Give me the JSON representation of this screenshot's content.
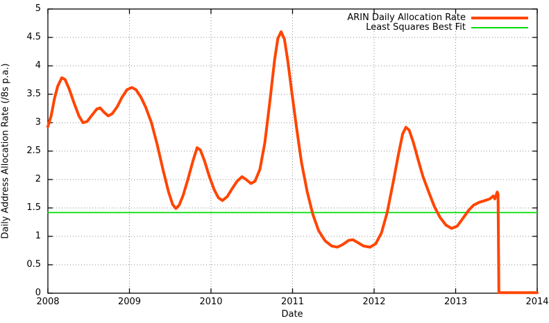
{
  "chart_data": {
    "type": "line",
    "title": "",
    "xlabel": "Date",
    "ylabel": "Daily Address Allocation Rate (/8s p.a.)",
    "xlim": [
      2008,
      2014
    ],
    "ylim": [
      0,
      5
    ],
    "x_ticks": [
      2008,
      2009,
      2010,
      2011,
      2012,
      2013,
      2014
    ],
    "y_ticks": [
      0,
      0.5,
      1,
      1.5,
      2,
      2.5,
      3,
      3.5,
      4,
      4.5,
      5
    ],
    "y_tick_labels": [
      "0",
      "0.5",
      "1",
      "1.5",
      "2",
      "2.5",
      "3",
      "3.5",
      "4",
      "4.5",
      "5"
    ],
    "grid": true,
    "legend_position": "top-right",
    "series": [
      {
        "name": "ARIN Daily Allocation Rate",
        "color": "#ff4500",
        "width": 4,
        "points": [
          [
            2008.0,
            2.93
          ],
          [
            2008.04,
            3.12
          ],
          [
            2008.08,
            3.42
          ],
          [
            2008.12,
            3.64
          ],
          [
            2008.17,
            3.79
          ],
          [
            2008.21,
            3.76
          ],
          [
            2008.26,
            3.6
          ],
          [
            2008.32,
            3.35
          ],
          [
            2008.38,
            3.12
          ],
          [
            2008.43,
            3.0
          ],
          [
            2008.48,
            3.02
          ],
          [
            2008.54,
            3.13
          ],
          [
            2008.6,
            3.24
          ],
          [
            2008.64,
            3.26
          ],
          [
            2008.69,
            3.18
          ],
          [
            2008.74,
            3.12
          ],
          [
            2008.79,
            3.16
          ],
          [
            2008.85,
            3.28
          ],
          [
            2008.91,
            3.45
          ],
          [
            2008.97,
            3.58
          ],
          [
            2009.03,
            3.62
          ],
          [
            2009.08,
            3.58
          ],
          [
            2009.14,
            3.45
          ],
          [
            2009.2,
            3.27
          ],
          [
            2009.27,
            3.0
          ],
          [
            2009.34,
            2.62
          ],
          [
            2009.41,
            2.18
          ],
          [
            2009.48,
            1.78
          ],
          [
            2009.53,
            1.56
          ],
          [
            2009.57,
            1.49
          ],
          [
            2009.61,
            1.55
          ],
          [
            2009.66,
            1.73
          ],
          [
            2009.72,
            2.02
          ],
          [
            2009.78,
            2.33
          ],
          [
            2009.83,
            2.56
          ],
          [
            2009.87,
            2.52
          ],
          [
            2009.92,
            2.33
          ],
          [
            2009.98,
            2.05
          ],
          [
            2010.04,
            1.82
          ],
          [
            2010.09,
            1.68
          ],
          [
            2010.14,
            1.63
          ],
          [
            2010.2,
            1.7
          ],
          [
            2010.26,
            1.84
          ],
          [
            2010.32,
            1.97
          ],
          [
            2010.38,
            2.05
          ],
          [
            2010.43,
            2.0
          ],
          [
            2010.49,
            1.93
          ],
          [
            2010.54,
            1.97
          ],
          [
            2010.6,
            2.18
          ],
          [
            2010.66,
            2.65
          ],
          [
            2010.72,
            3.35
          ],
          [
            2010.78,
            4.1
          ],
          [
            2010.82,
            4.48
          ],
          [
            2010.86,
            4.6
          ],
          [
            2010.9,
            4.47
          ],
          [
            2010.94,
            4.1
          ],
          [
            2010.99,
            3.55
          ],
          [
            2011.05,
            2.9
          ],
          [
            2011.11,
            2.3
          ],
          [
            2011.18,
            1.78
          ],
          [
            2011.25,
            1.38
          ],
          [
            2011.32,
            1.1
          ],
          [
            2011.4,
            0.92
          ],
          [
            2011.48,
            0.83
          ],
          [
            2011.55,
            0.81
          ],
          [
            2011.62,
            0.86
          ],
          [
            2011.69,
            0.93
          ],
          [
            2011.74,
            0.94
          ],
          [
            2011.8,
            0.89
          ],
          [
            2011.87,
            0.83
          ],
          [
            2011.95,
            0.81
          ],
          [
            2012.02,
            0.87
          ],
          [
            2012.09,
            1.06
          ],
          [
            2012.16,
            1.42
          ],
          [
            2012.23,
            1.92
          ],
          [
            2012.3,
            2.45
          ],
          [
            2012.35,
            2.8
          ],
          [
            2012.39,
            2.92
          ],
          [
            2012.43,
            2.87
          ],
          [
            2012.48,
            2.66
          ],
          [
            2012.54,
            2.35
          ],
          [
            2012.6,
            2.05
          ],
          [
            2012.67,
            1.78
          ],
          [
            2012.74,
            1.52
          ],
          [
            2012.81,
            1.33
          ],
          [
            2012.88,
            1.2
          ],
          [
            2012.95,
            1.14
          ],
          [
            2013.02,
            1.18
          ],
          [
            2013.09,
            1.32
          ],
          [
            2013.16,
            1.46
          ],
          [
            2013.22,
            1.55
          ],
          [
            2013.29,
            1.6
          ],
          [
            2013.36,
            1.63
          ],
          [
            2013.42,
            1.66
          ],
          [
            2013.46,
            1.71
          ],
          [
            2013.48,
            1.66
          ],
          [
            2013.51,
            1.78
          ],
          [
            2013.52,
            1.74
          ],
          [
            2013.53,
            0.01
          ],
          [
            2013.7,
            0.01
          ],
          [
            2014.0,
            0.01
          ]
        ]
      },
      {
        "name": "Least Squares Best Fit",
        "color": "#00dd00",
        "width": 1.8,
        "points": [
          [
            2008,
            1.42
          ],
          [
            2014,
            1.42
          ]
        ]
      }
    ]
  },
  "colors": {
    "background": "#ffffff",
    "border": "#000000",
    "grid": "#888888",
    "text": "#000000",
    "allocation_line": "#ff4500",
    "fit_line": "#00dd00"
  }
}
